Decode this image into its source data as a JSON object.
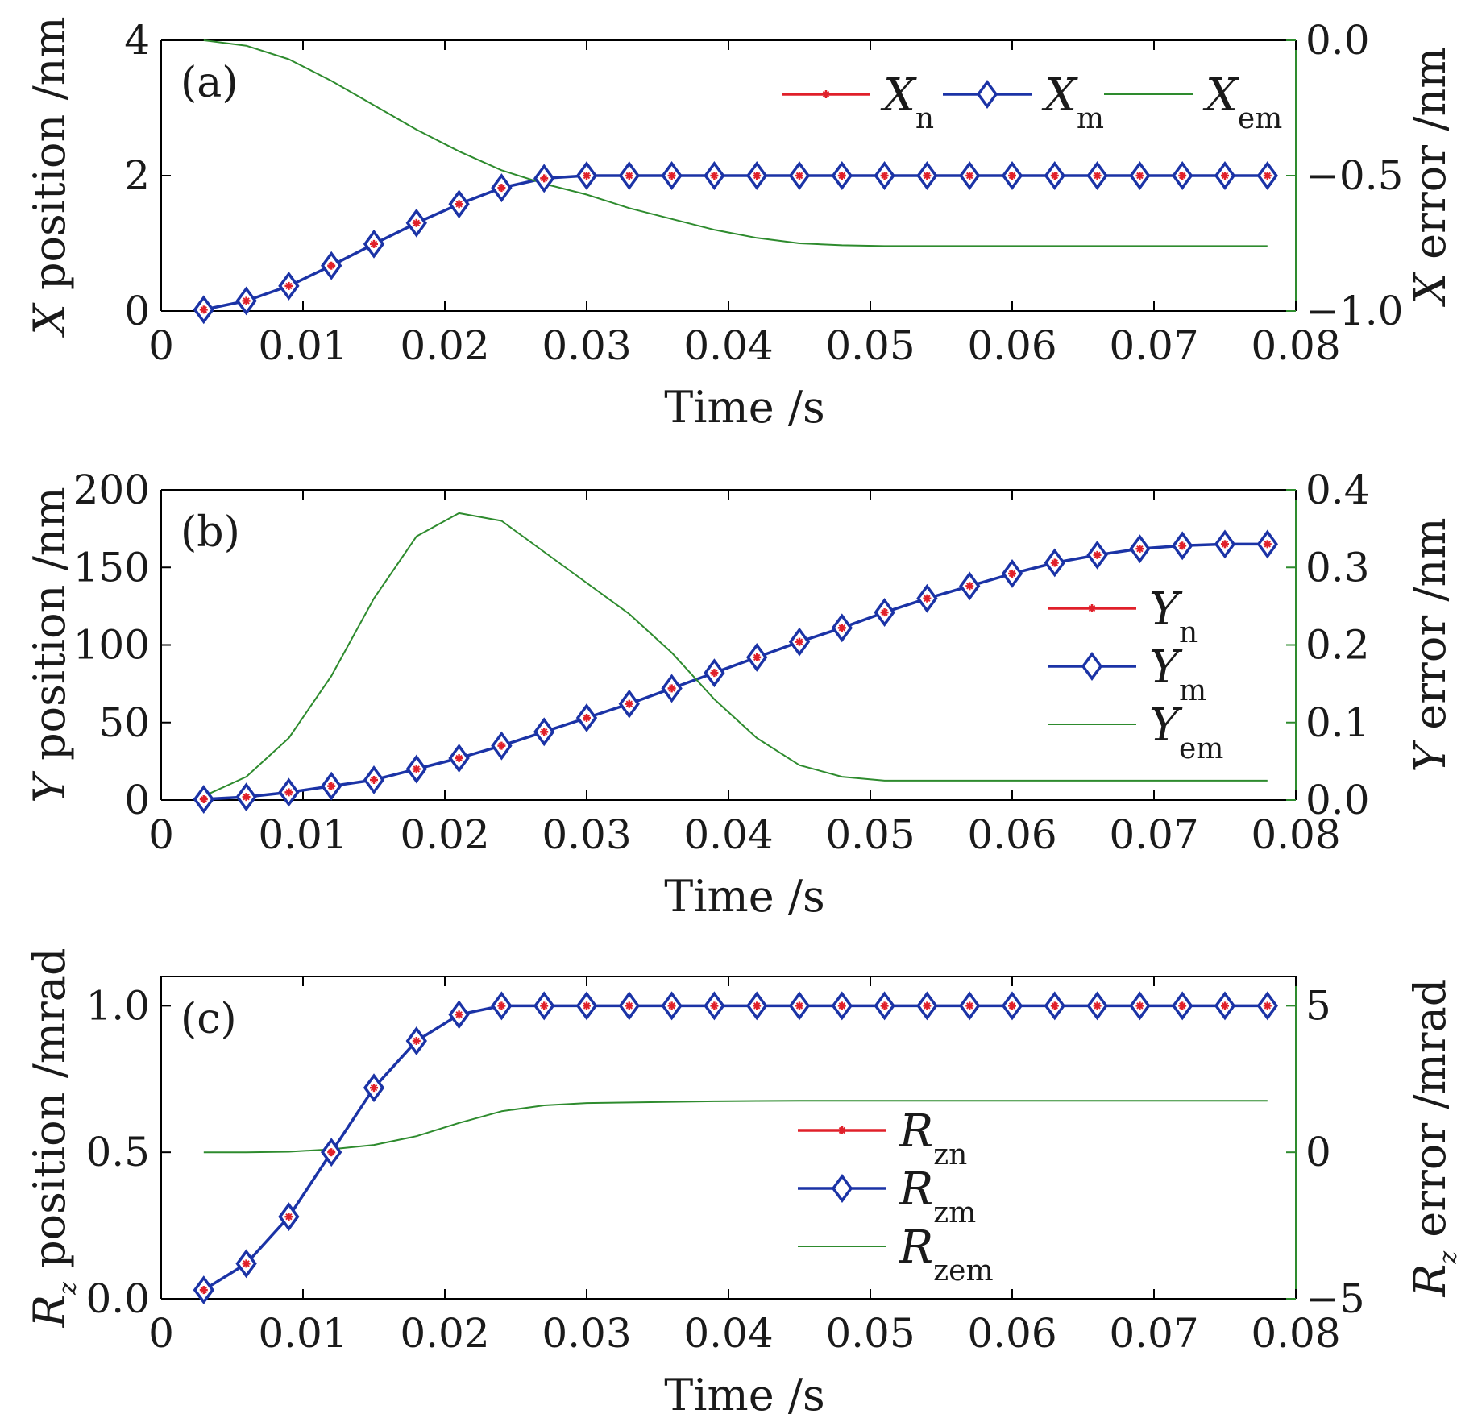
{
  "figure": {
    "colors": {
      "nominal": "#e0202a",
      "measured": "#1b33a6",
      "error": "#2e8b2e",
      "axis": "#000000",
      "right_axis": "#2e8b2e"
    }
  },
  "chart_data": [
    {
      "type": "line",
      "panel_label": "(a)",
      "xlabel": "Time /s",
      "ylabel_left": {
        "var": "X",
        "text": " position /nm"
      },
      "ylabel_right": {
        "var": "X",
        "text": " error /nm"
      },
      "xlim": [
        0,
        0.08
      ],
      "ylim_left": [
        0,
        4
      ],
      "ylim_right": [
        -1.0,
        0.0
      ],
      "x_ticks": [
        "0",
        "0.01",
        "0.02",
        "0.03",
        "0.04",
        "0.05",
        "0.06",
        "0.07",
        "0.08"
      ],
      "x_tick_values": [
        0,
        0.01,
        0.02,
        0.03,
        0.04,
        0.05,
        0.06,
        0.07,
        0.08
      ],
      "y_ticks_left": [
        "0",
        "2",
        "4"
      ],
      "y_tick_values_left": [
        0,
        2,
        4
      ],
      "y_ticks_right": [
        "−1.0",
        "−0.5",
        "0.0"
      ],
      "y_tick_values_right": [
        -1.0,
        -0.5,
        0.0
      ],
      "legend": {
        "position": "top-right",
        "layout": "horizontal",
        "entries": [
          {
            "var": "X",
            "sub": "n",
            "series": "nominal"
          },
          {
            "var": "X",
            "sub": "m",
            "series": "measured"
          },
          {
            "var": "X",
            "sub": "em",
            "series": "error"
          }
        ]
      },
      "x": [
        0.003,
        0.006,
        0.009,
        0.012,
        0.015,
        0.018,
        0.021,
        0.024,
        0.027,
        0.03,
        0.033,
        0.036,
        0.039,
        0.042,
        0.045,
        0.048,
        0.051,
        0.054,
        0.057,
        0.06,
        0.063,
        0.066,
        0.069,
        0.072,
        0.075,
        0.078
      ],
      "series": [
        {
          "name": "X_n",
          "axis": "left",
          "marker": "star",
          "color": "#e0202a",
          "values": [
            0.02,
            0.15,
            0.37,
            0.67,
            0.99,
            1.3,
            1.58,
            1.82,
            1.96,
            2.0,
            2.0,
            2.0,
            2.0,
            2.0,
            2.0,
            2.0,
            2.0,
            2.0,
            2.0,
            2.0,
            2.0,
            2.0,
            2.0,
            2.0,
            2.0,
            2.0
          ]
        },
        {
          "name": "X_m",
          "axis": "left",
          "marker": "diamond",
          "color": "#1b33a6",
          "values": [
            0.02,
            0.15,
            0.37,
            0.67,
            0.99,
            1.3,
            1.58,
            1.82,
            1.96,
            2.0,
            2.0,
            2.0,
            2.0,
            2.0,
            2.0,
            2.0,
            2.0,
            2.0,
            2.0,
            2.0,
            2.0,
            2.0,
            2.0,
            2.0,
            2.0,
            2.0
          ]
        },
        {
          "name": "X_em",
          "axis": "right",
          "marker": "none",
          "color": "#2e8b2e",
          "x": [
            0.003,
            0.006,
            0.009,
            0.012,
            0.015,
            0.018,
            0.021,
            0.024,
            0.027,
            0.03,
            0.033,
            0.036,
            0.039,
            0.042,
            0.045,
            0.048,
            0.051,
            0.06,
            0.07,
            0.078
          ],
          "values": [
            0.0,
            -0.02,
            -0.07,
            -0.15,
            -0.24,
            -0.33,
            -0.41,
            -0.48,
            -0.53,
            -0.57,
            -0.62,
            -0.66,
            -0.7,
            -0.73,
            -0.75,
            -0.757,
            -0.76,
            -0.76,
            -0.76,
            -0.76
          ]
        }
      ]
    },
    {
      "type": "line",
      "panel_label": "(b)",
      "xlabel": "Time /s",
      "ylabel_left": {
        "var": "Y",
        "text": " position /nm"
      },
      "ylabel_right": {
        "var": "Y",
        "text": " error /nm"
      },
      "xlim": [
        0,
        0.08
      ],
      "ylim_left": [
        0,
        200
      ],
      "ylim_right": [
        0.0,
        0.4
      ],
      "x_ticks": [
        "0",
        "0.01",
        "0.02",
        "0.03",
        "0.04",
        "0.05",
        "0.06",
        "0.07",
        "0.08"
      ],
      "x_tick_values": [
        0,
        0.01,
        0.02,
        0.03,
        0.04,
        0.05,
        0.06,
        0.07,
        0.08
      ],
      "y_ticks_left": [
        "0",
        "50",
        "100",
        "150",
        "200"
      ],
      "y_tick_values_left": [
        0,
        50,
        100,
        150,
        200
      ],
      "y_ticks_right": [
        "0.0",
        "0.1",
        "0.2",
        "0.3",
        "0.4"
      ],
      "y_tick_values_right": [
        0.0,
        0.1,
        0.2,
        0.3,
        0.4
      ],
      "legend": {
        "position": "center-right",
        "layout": "vertical",
        "entries": [
          {
            "var": "Y",
            "sub": "n",
            "series": "nominal"
          },
          {
            "var": "Y",
            "sub": "m",
            "series": "measured"
          },
          {
            "var": "Y",
            "sub": "em",
            "series": "error"
          }
        ]
      },
      "x": [
        0.003,
        0.006,
        0.009,
        0.012,
        0.015,
        0.018,
        0.021,
        0.024,
        0.027,
        0.03,
        0.033,
        0.036,
        0.039,
        0.042,
        0.045,
        0.048,
        0.051,
        0.054,
        0.057,
        0.06,
        0.063,
        0.066,
        0.069,
        0.072,
        0.075,
        0.078
      ],
      "series": [
        {
          "name": "Y_n",
          "axis": "left",
          "marker": "star",
          "color": "#e0202a",
          "values": [
            0.5,
            2,
            5,
            9,
            13,
            20,
            27,
            35,
            44,
            53,
            62,
            72,
            82,
            92,
            102,
            111,
            121,
            130,
            138,
            146,
            153,
            158,
            162,
            164,
            165,
            165
          ]
        },
        {
          "name": "Y_m",
          "axis": "left",
          "marker": "diamond",
          "color": "#1b33a6",
          "values": [
            0.5,
            2,
            5,
            9,
            13,
            20,
            27,
            35,
            44,
            53,
            62,
            72,
            82,
            92,
            102,
            111,
            121,
            130,
            138,
            146,
            153,
            158,
            162,
            164,
            165,
            165
          ]
        },
        {
          "name": "Y_em",
          "axis": "right",
          "marker": "none",
          "color": "#2e8b2e",
          "x": [
            0.003,
            0.006,
            0.009,
            0.012,
            0.015,
            0.018,
            0.021,
            0.024,
            0.027,
            0.03,
            0.033,
            0.036,
            0.039,
            0.042,
            0.045,
            0.048,
            0.051,
            0.06,
            0.07,
            0.078
          ],
          "values": [
            0.005,
            0.03,
            0.08,
            0.16,
            0.26,
            0.34,
            0.37,
            0.36,
            0.32,
            0.28,
            0.24,
            0.19,
            0.13,
            0.08,
            0.045,
            0.03,
            0.025,
            0.025,
            0.025,
            0.025
          ]
        }
      ]
    },
    {
      "type": "line",
      "panel_label": "(c)",
      "xlabel": "Time /s",
      "ylabel_left": {
        "var": "R",
        "sub": "z",
        "text": " position /mrad"
      },
      "ylabel_right": {
        "var": "R",
        "sub": "z",
        "text": " error /mrad"
      },
      "xlim": [
        0,
        0.08
      ],
      "ylim_left": [
        0,
        1.1
      ],
      "ylim_right": [
        -5,
        6
      ],
      "x_ticks": [
        "0",
        "0.01",
        "0.02",
        "0.03",
        "0.04",
        "0.05",
        "0.06",
        "0.07",
        "0.08"
      ],
      "x_tick_values": [
        0,
        0.01,
        0.02,
        0.03,
        0.04,
        0.05,
        0.06,
        0.07,
        0.08
      ],
      "y_ticks_left": [
        "0.0",
        "0.5",
        "1.0"
      ],
      "y_tick_values_left": [
        0.0,
        0.5,
        1.0
      ],
      "y_ticks_right": [
        "−5",
        "0",
        "5"
      ],
      "y_tick_values_right": [
        -5,
        0,
        5
      ],
      "legend": {
        "position": "lower-center",
        "layout": "vertical",
        "entries": [
          {
            "var": "R",
            "sub": "zn",
            "series": "nominal"
          },
          {
            "var": "R",
            "sub": "zm",
            "series": "measured"
          },
          {
            "var": "R",
            "sub": "zem",
            "series": "error"
          }
        ]
      },
      "x": [
        0.003,
        0.006,
        0.009,
        0.012,
        0.015,
        0.018,
        0.021,
        0.024,
        0.027,
        0.03,
        0.033,
        0.036,
        0.039,
        0.042,
        0.045,
        0.048,
        0.051,
        0.054,
        0.057,
        0.06,
        0.063,
        0.066,
        0.069,
        0.072,
        0.075,
        0.078
      ],
      "series": [
        {
          "name": "R_zn",
          "axis": "left",
          "marker": "star",
          "color": "#e0202a",
          "values": [
            0.03,
            0.12,
            0.28,
            0.5,
            0.72,
            0.88,
            0.97,
            1.0,
            1.0,
            1.0,
            1.0,
            1.0,
            1.0,
            1.0,
            1.0,
            1.0,
            1.0,
            1.0,
            1.0,
            1.0,
            1.0,
            1.0,
            1.0,
            1.0,
            1.0,
            1.0
          ]
        },
        {
          "name": "R_zm",
          "axis": "left",
          "marker": "diamond",
          "color": "#1b33a6",
          "values": [
            0.03,
            0.12,
            0.28,
            0.5,
            0.72,
            0.88,
            0.97,
            1.0,
            1.0,
            1.0,
            1.0,
            1.0,
            1.0,
            1.0,
            1.0,
            1.0,
            1.0,
            1.0,
            1.0,
            1.0,
            1.0,
            1.0,
            1.0,
            1.0,
            1.0,
            1.0
          ]
        },
        {
          "name": "R_zem",
          "axis": "right",
          "marker": "none",
          "color": "#2e8b2e",
          "x": [
            0.003,
            0.006,
            0.009,
            0.012,
            0.015,
            0.018,
            0.021,
            0.024,
            0.027,
            0.03,
            0.033,
            0.036,
            0.039,
            0.042,
            0.045,
            0.05,
            0.06,
            0.07,
            0.078
          ],
          "values": [
            0.0,
            0.0,
            0.02,
            0.1,
            0.25,
            0.55,
            1.0,
            1.4,
            1.6,
            1.68,
            1.7,
            1.72,
            1.74,
            1.75,
            1.76,
            1.76,
            1.76,
            1.76,
            1.76
          ]
        }
      ]
    }
  ]
}
